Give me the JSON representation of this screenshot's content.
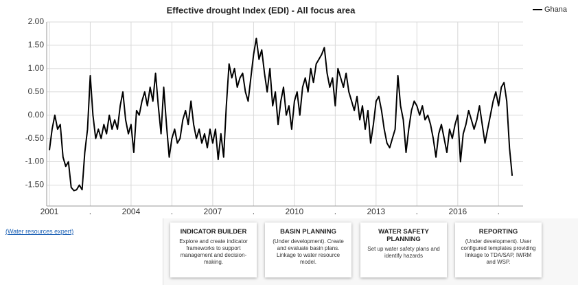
{
  "chart_data": {
    "type": "line",
    "title": "Effective drought Index (EDI) - All focus area",
    "x": [
      2001,
      2001.1,
      2001.2,
      2001.3,
      2001.4,
      2001.5,
      2001.6,
      2001.7,
      2001.8,
      2001.9,
      2002,
      2002.1,
      2002.2,
      2002.3,
      2002.4,
      2002.5,
      2002.6,
      2002.7,
      2002.8,
      2002.9,
      2003,
      2003.1,
      2003.2,
      2003.3,
      2003.4,
      2003.5,
      2003.6,
      2003.7,
      2003.8,
      2003.9,
      2004,
      2004.1,
      2004.2,
      2004.3,
      2004.4,
      2004.5,
      2004.6,
      2004.7,
      2004.8,
      2004.9,
      2005,
      2005.1,
      2005.2,
      2005.3,
      2005.4,
      2005.5,
      2005.6,
      2005.7,
      2005.8,
      2005.9,
      2006,
      2006.1,
      2006.2,
      2006.3,
      2006.4,
      2006.5,
      2006.6,
      2006.7,
      2006.8,
      2006.9,
      2007,
      2007.1,
      2007.2,
      2007.3,
      2007.4,
      2007.5,
      2007.6,
      2007.7,
      2007.8,
      2007.9,
      2008,
      2008.1,
      2008.2,
      2008.3,
      2008.4,
      2008.5,
      2008.6,
      2008.7,
      2008.8,
      2008.9,
      2009,
      2009.1,
      2009.2,
      2009.3,
      2009.4,
      2009.5,
      2009.6,
      2009.7,
      2009.8,
      2009.9,
      2010,
      2010.1,
      2010.2,
      2010.3,
      2010.4,
      2010.5,
      2010.6,
      2010.7,
      2010.8,
      2010.9,
      2011,
      2011.1,
      2011.2,
      2011.3,
      2011.4,
      2011.5,
      2011.6,
      2011.7,
      2011.8,
      2011.9,
      2012,
      2012.1,
      2012.2,
      2012.3,
      2012.4,
      2012.5,
      2012.6,
      2012.7,
      2012.8,
      2012.9,
      2013,
      2013.1,
      2013.2,
      2013.3,
      2013.4,
      2013.5,
      2013.6,
      2013.7,
      2013.8,
      2013.9,
      2014,
      2014.1,
      2014.2,
      2014.3,
      2014.4,
      2014.5,
      2014.6,
      2014.7,
      2014.8,
      2014.9,
      2015,
      2015.1,
      2015.2,
      2015.3,
      2015.4,
      2015.5,
      2015.6,
      2015.7,
      2015.8,
      2015.9,
      2016,
      2016.1,
      2016.2,
      2016.3,
      2016.4,
      2016.5,
      2016.6,
      2016.7,
      2016.8,
      2016.9,
      2017,
      2017.1,
      2017.2,
      2017.3,
      2017.4,
      2017.5,
      2017.6,
      2017.7,
      2017.8,
      2017.9,
      2018
    ],
    "series": [
      {
        "name": "Ghana",
        "color": "#000000",
        "values": [
          -0.75,
          -0.3,
          0.0,
          -0.3,
          -0.2,
          -0.9,
          -1.1,
          -1.0,
          -1.55,
          -1.62,
          -1.6,
          -1.5,
          -1.6,
          -0.8,
          -0.3,
          0.85,
          0.0,
          -0.5,
          -0.3,
          -0.5,
          -0.2,
          -0.4,
          0.0,
          -0.3,
          -0.1,
          -0.3,
          0.2,
          0.5,
          -0.1,
          -0.4,
          -0.2,
          -0.8,
          0.1,
          0.0,
          0.3,
          0.5,
          0.2,
          0.6,
          0.3,
          0.9,
          0.2,
          -0.4,
          0.6,
          -0.2,
          -0.9,
          -0.5,
          -0.3,
          -0.6,
          -0.5,
          -0.1,
          0.1,
          -0.2,
          0.3,
          -0.2,
          -0.5,
          -0.3,
          -0.6,
          -0.4,
          -0.7,
          -0.3,
          -0.6,
          -0.3,
          -0.95,
          -0.4,
          -0.9,
          0.2,
          1.1,
          0.8,
          1.0,
          0.6,
          0.8,
          0.9,
          0.5,
          0.3,
          0.8,
          1.3,
          1.65,
          1.2,
          1.4,
          0.9,
          0.5,
          1.0,
          0.2,
          0.5,
          -0.2,
          0.3,
          0.6,
          0.0,
          0.2,
          -0.3,
          0.3,
          0.5,
          0.0,
          0.6,
          0.8,
          0.5,
          1.0,
          0.7,
          1.1,
          1.2,
          1.3,
          1.45,
          0.9,
          0.6,
          0.8,
          0.2,
          1.0,
          0.8,
          0.6,
          0.9,
          0.5,
          0.3,
          0.1,
          0.4,
          -0.1,
          0.2,
          -0.3,
          0.1,
          -0.6,
          -0.2,
          0.3,
          0.4,
          0.1,
          -0.3,
          -0.6,
          -0.7,
          -0.5,
          -0.3,
          0.85,
          0.2,
          -0.1,
          -0.8,
          -0.3,
          0.1,
          0.3,
          0.2,
          0.0,
          0.2,
          -0.1,
          0.0,
          -0.2,
          -0.5,
          -0.9,
          -0.4,
          -0.2,
          -0.5,
          -0.8,
          -0.3,
          -0.5,
          -0.2,
          0.0,
          -1.0,
          -0.4,
          -0.2,
          0.1,
          -0.1,
          -0.3,
          -0.1,
          0.2,
          -0.2,
          -0.6,
          -0.3,
          0.0,
          0.3,
          0.5,
          0.2,
          0.6,
          0.7,
          0.3,
          -0.7,
          -1.3
        ]
      }
    ],
    "xlim": [
      2000.9,
      2018.4
    ],
    "xticks": [
      2001,
      {
        "value": 2002.5,
        "label": "."
      },
      2004,
      {
        "value": 2005.5,
        "label": "."
      },
      2007,
      {
        "value": 2008.5,
        "label": "."
      },
      2010,
      {
        "value": 2011.5,
        "label": "."
      },
      2013,
      {
        "value": 2014.5,
        "label": "."
      },
      2016,
      {
        "value": 2017.5,
        "label": "."
      }
    ],
    "ylim": [
      -1.95,
      2.0
    ],
    "yticks": [
      {
        "value": 2.0,
        "label": "2.00"
      },
      {
        "value": 1.5,
        "label": "1.50"
      },
      {
        "value": 1.0,
        "label": "1.00"
      },
      {
        "value": 0.5,
        "label": "0.50"
      },
      {
        "value": 0,
        "label": "0.00"
      },
      {
        "value": -0.5,
        "label": "-0.50"
      },
      {
        "value": -1.0,
        "label": "-1.00"
      },
      {
        "value": -1.5,
        "label": "-1.50"
      }
    ],
    "grid": true,
    "legend": "top-right"
  },
  "sidebar": {
    "link": "(Water resources expert)"
  },
  "cards": [
    {
      "title": "INDICATOR BUILDER",
      "text": "Explore and create indicator frameworks to support management and decision-making."
    },
    {
      "title": "BASIN PLANNING",
      "text": "(Under development). Create and evaluate basin plans. Linkage to water resource model."
    },
    {
      "title": "WATER SAFETY PLANNING",
      "text": "Set up water safety plans and identify hazards"
    },
    {
      "title": "REPORTING",
      "text": "(Under development). User configured templates providing linkage to TDA/SAP, IWRM and WSP."
    }
  ]
}
